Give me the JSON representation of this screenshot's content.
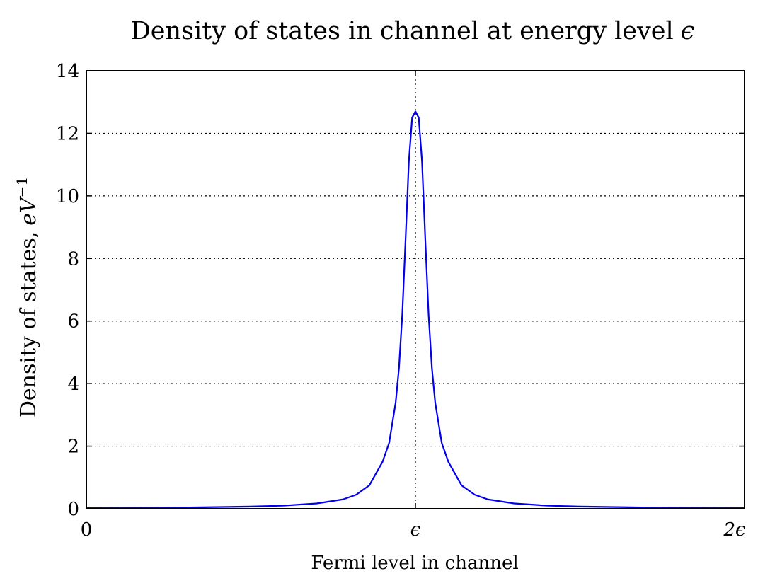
{
  "chart_data": {
    "type": "line",
    "title": "Density of states in channel at energy level",
    "title_symbol": "ϵ",
    "xlabel": "Fermi level in channel",
    "ylabel": "Density of states,",
    "ylabel_unit": "eV",
    "ylabel_unit_exponent": "−1",
    "xlim": [
      0,
      2
    ],
    "ylim": [
      0,
      14
    ],
    "x_ticks": [
      {
        "value": 0,
        "label": "0"
      },
      {
        "value": 1,
        "label": "ϵ"
      },
      {
        "value": 2,
        "label": "2ϵ"
      }
    ],
    "y_ticks": [
      {
        "value": 0,
        "label": "0"
      },
      {
        "value": 2,
        "label": "2"
      },
      {
        "value": 4,
        "label": "4"
      },
      {
        "value": 6,
        "label": "6"
      },
      {
        "value": 8,
        "label": "8"
      },
      {
        "value": 10,
        "label": "10"
      },
      {
        "value": 12,
        "label": "12"
      },
      {
        "value": 14,
        "label": "14"
      }
    ],
    "grid": true,
    "legend": false,
    "series": [
      {
        "color": "#0000ee",
        "x": [
          0,
          0.3,
          0.5,
          0.6,
          0.7,
          0.78,
          0.82,
          0.86,
          0.9,
          0.92,
          0.94,
          0.95,
          0.96,
          0.97,
          0.98,
          0.99,
          1.0,
          1.01,
          1.02,
          1.03,
          1.04,
          1.05,
          1.06,
          1.08,
          1.1,
          1.14,
          1.18,
          1.22,
          1.3,
          1.4,
          1.5,
          1.7,
          2.0
        ],
        "y": [
          0.02,
          0.04,
          0.07,
          0.1,
          0.17,
          0.3,
          0.45,
          0.75,
          1.5,
          2.1,
          3.4,
          4.5,
          6.2,
          8.6,
          11.1,
          12.5,
          12.7,
          12.5,
          11.1,
          8.6,
          6.2,
          4.5,
          3.4,
          2.1,
          1.5,
          0.75,
          0.45,
          0.3,
          0.17,
          0.1,
          0.07,
          0.04,
          0.02
        ]
      }
    ]
  }
}
